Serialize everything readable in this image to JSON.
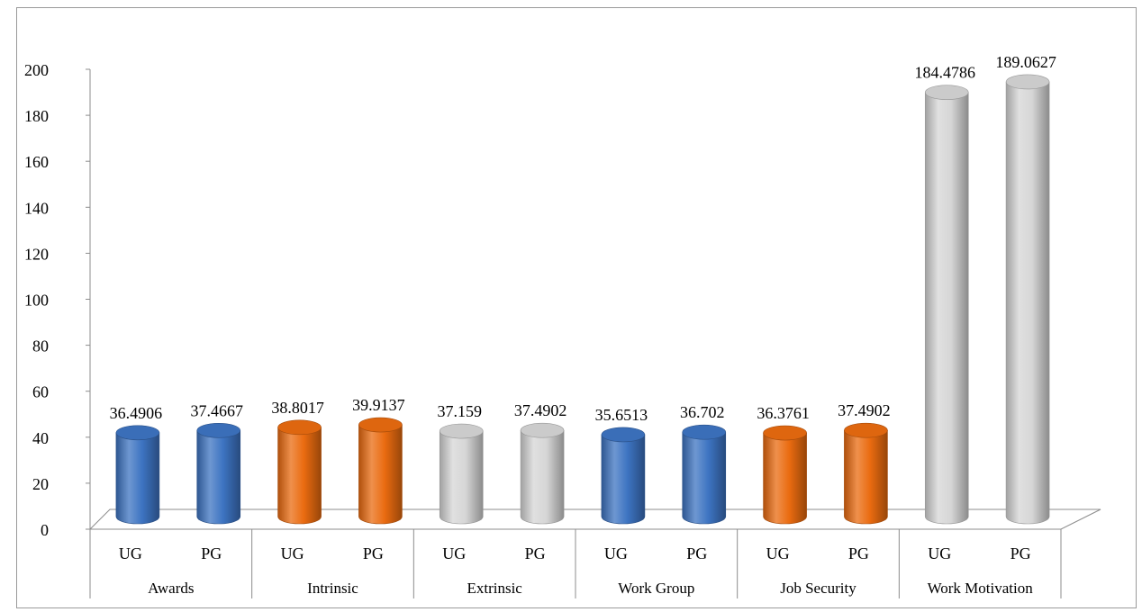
{
  "chart_data": {
    "type": "bar",
    "title": "",
    "xlabel": "",
    "ylabel": "",
    "ylim": [
      0,
      200
    ],
    "yticks": [
      "0",
      "20",
      "40",
      "60",
      "80",
      "100",
      "120",
      "140",
      "160",
      "180",
      "200"
    ],
    "groups": [
      "Awards",
      "Intrinsic",
      "Extrinsic",
      "Work Group",
      "Job Security",
      "Work Motivation"
    ],
    "bars": [
      {
        "group": "Awards",
        "category": "UG",
        "value": 36.4906,
        "label": "36.4906",
        "color": "#3d74c2"
      },
      {
        "group": "Awards",
        "category": "PG",
        "value": 37.4667,
        "label": "37.4667",
        "color": "#3d74c2"
      },
      {
        "group": "Intrinsic",
        "category": "UG",
        "value": 38.8017,
        "label": "38.8017",
        "color": "#ea6b10"
      },
      {
        "group": "Intrinsic",
        "category": "PG",
        "value": 39.9137,
        "label": "39.9137",
        "color": "#ea6b10"
      },
      {
        "group": "Extrinsic",
        "category": "UG",
        "value": 37.159,
        "label": "37.159",
        "color": "#d6d6d6"
      },
      {
        "group": "Extrinsic",
        "category": "PG",
        "value": 37.4902,
        "label": "37.4902",
        "color": "#d6d6d6"
      },
      {
        "group": "Work Group",
        "category": "UG",
        "value": 35.6513,
        "label": "35.6513",
        "color": "#3d74c2"
      },
      {
        "group": "Work Group",
        "category": "PG",
        "value": 36.702,
        "label": "36.702",
        "color": "#3d74c2"
      },
      {
        "group": "Job Security",
        "category": "UG",
        "value": 36.3761,
        "label": "36.3761",
        "color": "#ea6b10"
      },
      {
        "group": "Job Security",
        "category": "PG",
        "value": 37.4902,
        "label": "37.4902",
        "color": "#ea6b10"
      },
      {
        "group": "Work Motivation",
        "category": "UG",
        "value": 184.4786,
        "label": "184.4786",
        "color": "#d6d6d6"
      },
      {
        "group": "Work Motivation",
        "category": "PG",
        "value": 189.0627,
        "label": "189.0627",
        "color": "#d6d6d6"
      }
    ],
    "grid": false,
    "legend": "none",
    "style": "3d-cylinder"
  }
}
